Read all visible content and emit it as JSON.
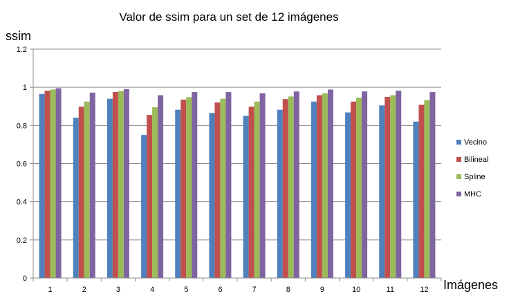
{
  "chart_data": {
    "type": "bar",
    "title": "Valor de ssim para un set de 12 imágenes",
    "xlabel": "Imágenes",
    "ylabel": "ssim",
    "ylim": [
      0,
      1.2
    ],
    "yticks": [
      "0",
      "0.2",
      "0.4",
      "0.6",
      "0.8",
      "1",
      "1.2"
    ],
    "ytick_values": [
      0,
      0.2,
      0.4,
      0.6,
      0.8,
      1.0,
      1.2
    ],
    "grid": true,
    "legend_position": "right",
    "categories": [
      "1",
      "2",
      "3",
      "4",
      "5",
      "6",
      "7",
      "8",
      "9",
      "10",
      "11",
      "12"
    ],
    "series": [
      {
        "name": "Vecino",
        "color": "#4F81BD",
        "values": [
          0.965,
          0.84,
          0.94,
          0.75,
          0.882,
          0.865,
          0.85,
          0.882,
          0.925,
          0.868,
          0.905,
          0.82
        ]
      },
      {
        "name": "Bilineal",
        "color": "#C0504D",
        "values": [
          0.982,
          0.898,
          0.975,
          0.855,
          0.935,
          0.92,
          0.898,
          0.938,
          0.958,
          0.925,
          0.95,
          0.908
        ]
      },
      {
        "name": "Spline",
        "color": "#9BBB59",
        "values": [
          0.988,
          0.925,
          0.98,
          0.895,
          0.948,
          0.94,
          0.925,
          0.952,
          0.968,
          0.945,
          0.958,
          0.932
        ]
      },
      {
        "name": "MHC",
        "color": "#8064A2",
        "values": [
          0.995,
          0.972,
          0.99,
          0.958,
          0.975,
          0.975,
          0.968,
          0.978,
          0.988,
          0.978,
          0.982,
          0.975
        ]
      }
    ]
  }
}
